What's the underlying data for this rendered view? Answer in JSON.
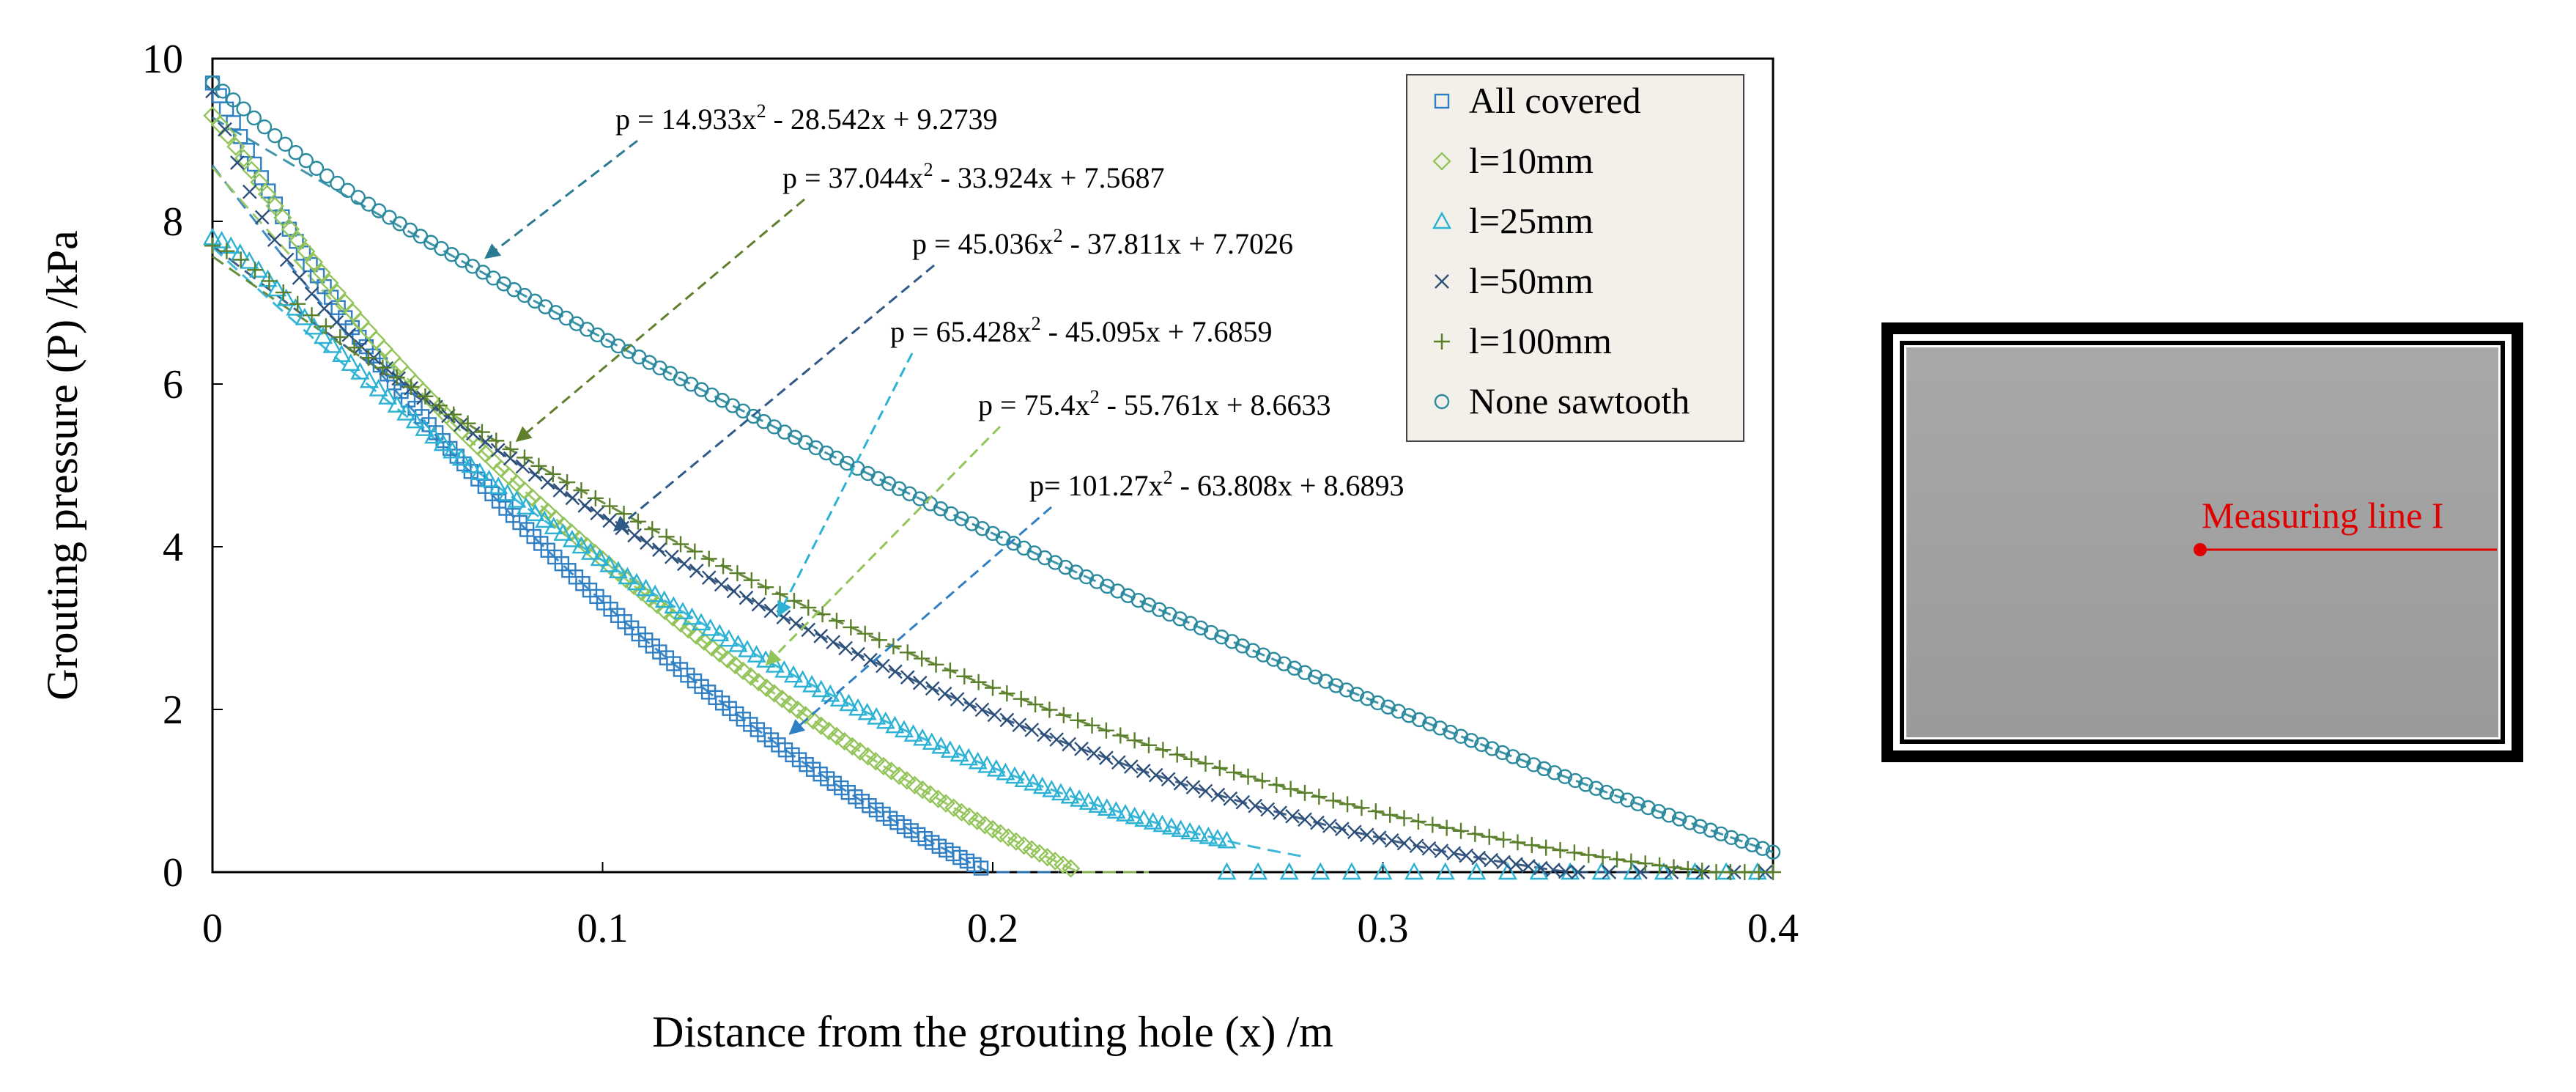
{
  "chart_data": {
    "type": "scatter",
    "xlabel": "Distance from the grouting hole (x) /m",
    "ylabel": "Grouting pressure (P) /kPa",
    "xlim": [
      0,
      0.4
    ],
    "ylim": [
      0,
      10
    ],
    "xticks": [
      "0",
      "0.1",
      "0.2",
      "0.3",
      "0.4"
    ],
    "yticks": [
      "0",
      "2",
      "4",
      "6",
      "8",
      "10"
    ],
    "series": [
      {
        "name": "All covered",
        "marker": "square",
        "color": "#2f7fc4",
        "end_x": 0.197,
        "fit": {
          "a": 101.27,
          "b": -63.808,
          "c": 8.6893
        },
        "start": 9.7
      },
      {
        "name": "l=10mm",
        "marker": "diamond",
        "color": "#93c45a",
        "end_x": 0.22,
        "fit": {
          "a": 75.4,
          "b": -55.761,
          "c": 8.6633
        },
        "start": 9.3
      },
      {
        "name": "l=25mm",
        "marker": "triangle",
        "color": "#2bb1d4",
        "end_x": 0.26,
        "fit": {
          "a": 65.428,
          "b": -45.095,
          "c": 7.6859
        },
        "start": 7.8
      },
      {
        "name": "l=50mm",
        "marker": "x",
        "color": "#2c4f7a",
        "end_x": 0.35,
        "fit": {
          "a": 45.036,
          "b": -37.811,
          "c": 7.7026
        },
        "start": 9.6
      },
      {
        "name": "l=100mm",
        "marker": "plus",
        "color": "#5a7f2a",
        "end_x": 0.4,
        "fit": {
          "a": 37.044,
          "b": -33.924,
          "c": 7.5687
        },
        "start": 7.7
      },
      {
        "name": "None sawtooth",
        "marker": "circle",
        "color": "#2b8a9e",
        "end_x": 0.4,
        "fit": {
          "a": 14.933,
          "b": -28.542,
          "c": 9.2739
        },
        "start": 9.7
      }
    ],
    "annotations": [
      {
        "pre": "p = 14.933x",
        "post": " - 28.542x + 9.2739",
        "color": "#2b7a94",
        "arrow_x": 0.07,
        "arrow_y": 7.55
      },
      {
        "pre": "p = 37.044x",
        "post": " - 33.924x + 7.5687",
        "color": "#5f7f2c",
        "arrow_x": 0.078,
        "arrow_y": 5.3
      },
      {
        "pre": "p = 45.036x",
        "post": " - 37.811x + 7.7026",
        "color": "#2d5a86",
        "arrow_x": 0.103,
        "arrow_y": 4.2
      },
      {
        "pre": "p = 65.428x",
        "post": " - 45.095x + 7.6859",
        "color": "#2bb1d4",
        "arrow_x": 0.145,
        "arrow_y": 3.15
      },
      {
        "pre": "p = 75.4x",
        "post": " - 55.761x + 8.6633",
        "color": "#93c45a",
        "arrow_x": 0.142,
        "arrow_y": 2.55
      },
      {
        "pre": "p= 101.27x",
        "post": " - 63.808x + 8.6893",
        "color": "#2f7fc4",
        "arrow_x": 0.148,
        "arrow_y": 1.7
      }
    ],
    "legend_position": "top-right"
  },
  "inset": {
    "label": "Measuring line I"
  }
}
